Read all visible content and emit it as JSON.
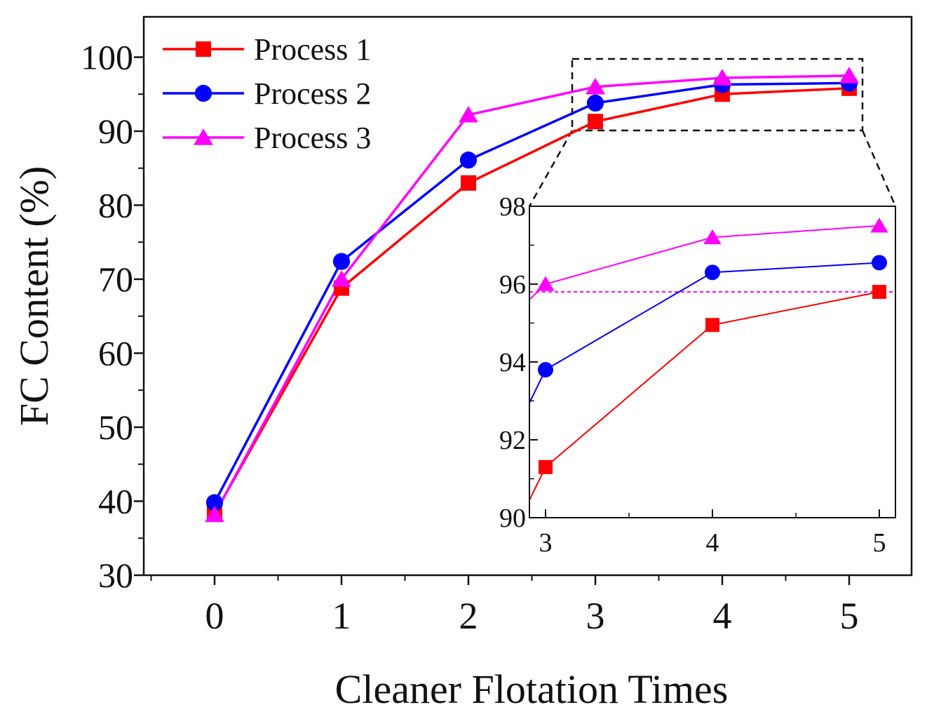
{
  "colors": {
    "process1": "#ff0000",
    "process2": "#0000ff",
    "process3": "#ff00ff",
    "axis": "#111111",
    "reference_line": "#ff00ff"
  },
  "chart_data": [
    {
      "type": "line",
      "title": "",
      "xlabel": "Cleaner Flotation Times",
      "ylabel": "FC Content (%)",
      "xlim": [
        -0.5,
        5.5
      ],
      "ylim": [
        30,
        104
      ],
      "xticks": [
        0,
        1,
        2,
        3,
        4,
        5
      ],
      "xtick_labels": [
        "0",
        "1",
        "2",
        "3",
        "4",
        "5"
      ],
      "yticks": [
        30,
        40,
        50,
        60,
        70,
        80,
        90,
        100
      ],
      "ytick_labels": [
        "30",
        "40",
        "50",
        "60",
        "70",
        "80",
        "90",
        "100"
      ],
      "legend_position": "top-left",
      "x": [
        0,
        1,
        2,
        3,
        4,
        5
      ],
      "series": [
        {
          "name": "Process 1",
          "marker": "square",
          "color": "#ff0000",
          "values": [
            38.3,
            68.8,
            83.0,
            91.3,
            95.0,
            95.8
          ]
        },
        {
          "name": "Process 2",
          "marker": "circle",
          "color": "#0000ff",
          "values": [
            39.8,
            72.4,
            86.1,
            93.8,
            96.3,
            96.5
          ]
        },
        {
          "name": "Process 3",
          "marker": "triangle",
          "color": "#ff00ff",
          "values": [
            38.2,
            70.0,
            92.2,
            96.0,
            97.2,
            97.5
          ]
        }
      ],
      "zoom_region": {
        "x": [
          2.85,
          5.1
        ],
        "y": [
          90,
          99.8
        ]
      }
    },
    {
      "type": "line",
      "title": "",
      "role": "inset",
      "xlim": [
        2.9,
        5.1
      ],
      "ylim": [
        90,
        98
      ],
      "xticks": [
        3,
        4,
        5
      ],
      "xtick_labels": [
        "3",
        "4",
        "5"
      ],
      "yticks": [
        90,
        92,
        94,
        96,
        98
      ],
      "ytick_labels": [
        "90",
        "92",
        "94",
        "96",
        "98"
      ],
      "x": [
        3,
        4,
        5
      ],
      "reference_line_y": 95.8,
      "series": [
        {
          "name": "Process 1",
          "marker": "square",
          "color": "#ff0000",
          "values": [
            91.3,
            94.95,
            95.8
          ]
        },
        {
          "name": "Process 2",
          "marker": "circle",
          "color": "#0000ff",
          "values": [
            93.8,
            96.3,
            96.55
          ]
        },
        {
          "name": "Process 3",
          "marker": "triangle",
          "color": "#ff00ff",
          "values": [
            96.0,
            97.2,
            97.5
          ]
        }
      ],
      "left_edge_values": [
        90.45,
        92.95,
        95.6
      ]
    }
  ]
}
